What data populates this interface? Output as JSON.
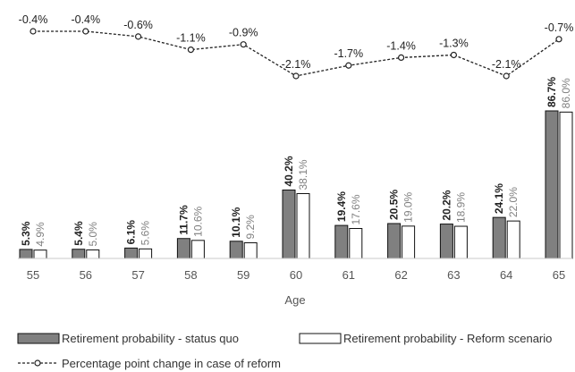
{
  "chart_data": {
    "type": "bar",
    "xlabel": "Age",
    "categories": [
      "55",
      "56",
      "57",
      "58",
      "59",
      "60",
      "61",
      "62",
      "63",
      "64",
      "65"
    ],
    "series": [
      {
        "name": "Retirement probability - status quo",
        "values": [
          5.3,
          5.4,
          6.1,
          11.7,
          10.1,
          40.2,
          19.4,
          20.5,
          20.2,
          24.1,
          86.7
        ],
        "labels": [
          "5.3%",
          "5.4%",
          "6.1%",
          "11.7%",
          "10.1%",
          "40.2%",
          "19.4%",
          "20.5%",
          "20.2%",
          "24.1%",
          "86.7%"
        ],
        "color": "#808080"
      },
      {
        "name": "Retirement probability - Reform scenario",
        "values": [
          4.9,
          5.0,
          5.6,
          10.6,
          9.2,
          38.1,
          17.6,
          19.0,
          18.9,
          22.0,
          86.0
        ],
        "labels": [
          "4.9%",
          "5.0%",
          "5.6%",
          "10.6%",
          "9.2%",
          "38.1%",
          "17.6%",
          "19.0%",
          "18.9%",
          "22.0%",
          "86.0%"
        ],
        "color": "#ffffff"
      }
    ],
    "line_series": {
      "name": "Percentage point change in case of reform",
      "values": [
        -0.4,
        -0.4,
        -0.6,
        -1.1,
        -0.9,
        -2.1,
        -1.7,
        -1.4,
        -1.3,
        -2.1,
        -0.7
      ],
      "labels": [
        "-0.4%",
        "-0.4%",
        "-0.6%",
        "-1.1%",
        "-0.9%",
        "-2.1%",
        "-1.7%",
        "-1.4%",
        "-1.3%",
        "-2.1%",
        "-0.7%"
      ],
      "style": "dashed",
      "marker": "circle"
    },
    "legend_position": "bottom",
    "grid": false
  }
}
